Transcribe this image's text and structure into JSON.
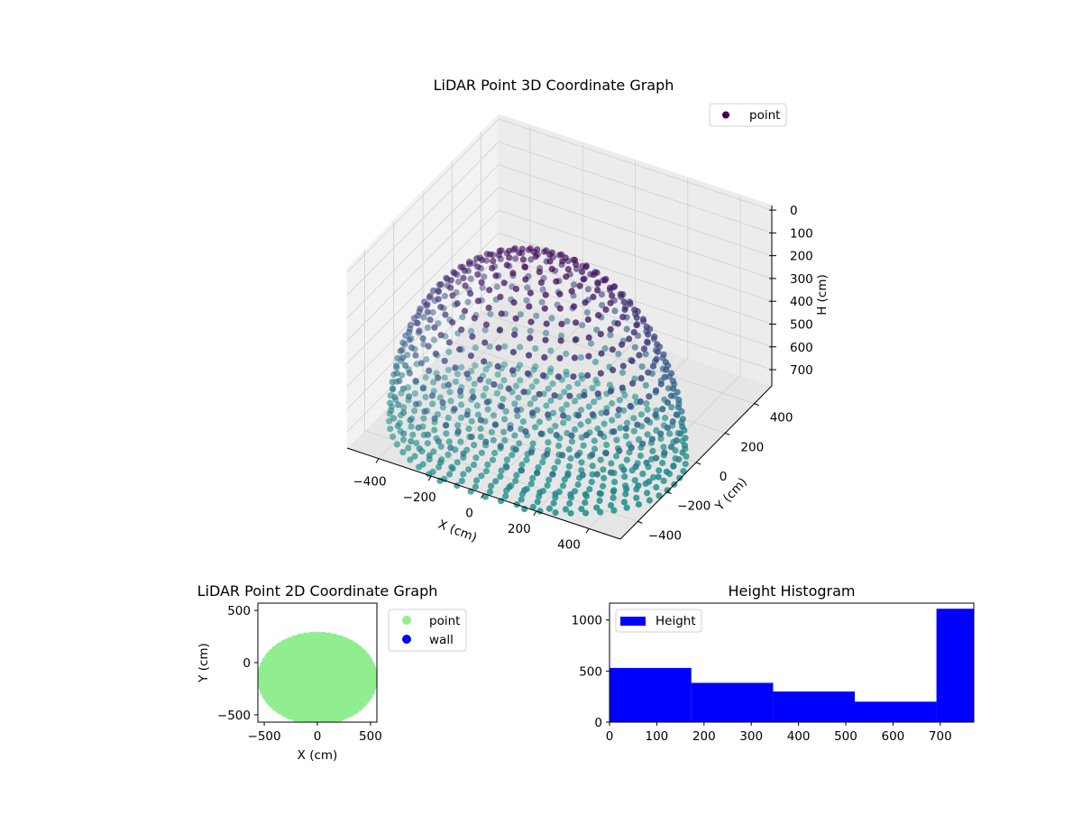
{
  "chart_data": [
    {
      "type": "scatter3d",
      "title": "LiDAR Point 3D Coordinate Graph",
      "xlabel": "X (cm)",
      "ylabel": "Y (cm)",
      "zlabel": "H (cm)",
      "xlim": [
        -520,
        520
      ],
      "ylim": [
        -520,
        520
      ],
      "zlim": [
        771,
        -20
      ],
      "xticks": [
        "−400",
        "−200",
        "0",
        "200",
        "400"
      ],
      "xtick_values": [
        -400,
        -200,
        0,
        200,
        400
      ],
      "yticks": [
        "−400",
        "−200",
        "0",
        "200",
        "400"
      ],
      "ytick_values": [
        -400,
        -200,
        0,
        200,
        400
      ],
      "zticks": [
        "0",
        "100",
        "200",
        "300",
        "400",
        "500",
        "600",
        "700"
      ],
      "ztick_values": [
        0,
        100,
        200,
        300,
        400,
        500,
        600,
        700
      ],
      "legend": {
        "label": "point",
        "color": "#440154",
        "placement": "top-right"
      },
      "colormap": [
        "#440154",
        "#3b528b",
        "#21918c"
      ],
      "point_model": {
        "shape": "dome shell with floor rings",
        "center_x": 0,
        "center_y": -150,
        "radius_x": 520,
        "radius_y": 400,
        "max_height": 770,
        "y_min": -540,
        "ring_step_deg": 6,
        "floor_ring_step": 40
      }
    },
    {
      "type": "scatter",
      "title": "LiDAR Point 2D Coordinate Graph",
      "xlabel": "X (cm)",
      "ylabel": "Y (cm)",
      "xlim": [
        -560,
        560
      ],
      "ylim": [
        -570,
        570
      ],
      "xticks": [
        "−500",
        "0",
        "500"
      ],
      "xtick_values": [
        -500,
        0,
        500
      ],
      "yticks": [
        "−500",
        "0",
        "500"
      ],
      "ytick_values": [
        -500,
        0,
        500
      ],
      "legend": [
        {
          "label": "point",
          "color": "#90ee90"
        },
        {
          "label": "wall",
          "color": "#0000ff"
        }
      ]
    },
    {
      "type": "bar",
      "title": "Height Histogram",
      "bin_edges": [
        0,
        173,
        346,
        519,
        692,
        865
      ],
      "values": [
        530,
        385,
        300,
        200,
        1110
      ],
      "color": "#0000ff",
      "legend": {
        "label": "Height",
        "placement": "top-left"
      },
      "xlim": [
        0,
        771
      ],
      "ylim": [
        0,
        1165
      ],
      "xticks": [
        "0",
        "100",
        "200",
        "300",
        "400",
        "500",
        "600",
        "700"
      ],
      "xtick_values": [
        0,
        100,
        200,
        300,
        400,
        500,
        600,
        700
      ],
      "yticks": [
        "0",
        "500",
        "1000"
      ],
      "ytick_values": [
        0,
        500,
        1000
      ]
    }
  ]
}
